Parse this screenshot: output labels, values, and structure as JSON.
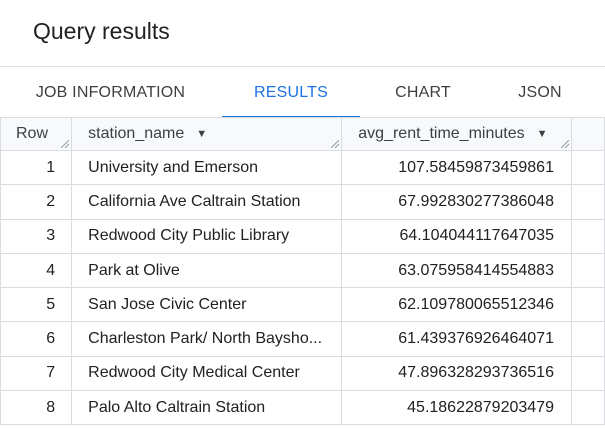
{
  "title": "Query results",
  "tabs": [
    {
      "label": "JOB INFORMATION",
      "active": false
    },
    {
      "label": "RESULTS",
      "active": true
    },
    {
      "label": "CHART",
      "active": false
    },
    {
      "label": "JSON",
      "active": false
    }
  ],
  "accent_color": "#1a73e8",
  "table": {
    "columns": [
      "Row",
      "station_name",
      "avg_rent_time_minutes"
    ],
    "sort_icon": "caret-down-icon",
    "rows": [
      {
        "row": "1",
        "station_name": "University and Emerson",
        "avg": "107.58459873459861"
      },
      {
        "row": "2",
        "station_name": "California Ave Caltrain Station",
        "avg": "67.992830277386048"
      },
      {
        "row": "3",
        "station_name": "Redwood City Public Library",
        "avg": "64.104044117647035"
      },
      {
        "row": "4",
        "station_name": "Park at Olive",
        "avg": "63.075958414554883"
      },
      {
        "row": "5",
        "station_name": "San Jose Civic Center",
        "avg": "62.109780065512346"
      },
      {
        "row": "6",
        "station_name": "Charleston Park/ North Baysho...",
        "avg": "61.439376926464071"
      },
      {
        "row": "7",
        "station_name": "Redwood City Medical Center",
        "avg": "47.896328293736516"
      },
      {
        "row": "8",
        "station_name": "Palo Alto Caltrain Station",
        "avg": "45.18622879203479"
      }
    ]
  }
}
